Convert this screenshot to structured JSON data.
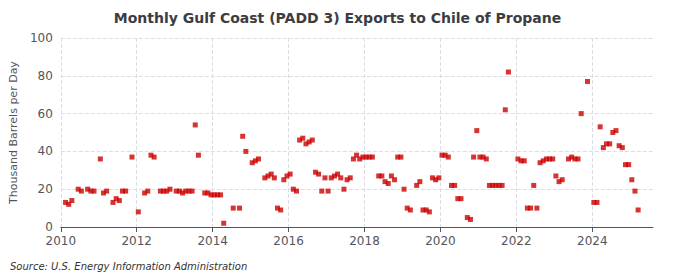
{
  "chart_data": {
    "type": "scatter",
    "title": "Monthly Gulf Coast (PADD 3) Exports to Chile of Propane",
    "ylabel": "Thousand Barrels per Day",
    "annotation": "Source: U.S. Energy Information Administration",
    "color": "#cc0000",
    "marker": "square",
    "grid": true,
    "xlim": [
      2010.0,
      2025.6
    ],
    "xticks": [
      2010,
      2012,
      2014,
      2016,
      2018,
      2020,
      2022,
      2024
    ],
    "ylim": [
      0,
      100
    ],
    "yticks": [
      0,
      20,
      40,
      60,
      80,
      100
    ],
    "x": [
      2010.125,
      2010.208333,
      2010.291667,
      2010.458333,
      2010.541667,
      2010.708333,
      2010.791667,
      2010.875,
      2011.041667,
      2011.125,
      2011.208333,
      2011.375,
      2011.458333,
      2011.541667,
      2011.625,
      2011.708333,
      2011.875,
      2012.041667,
      2012.208333,
      2012.291667,
      2012.375,
      2012.458333,
      2012.625,
      2012.708333,
      2012.791667,
      2012.875,
      2013.041667,
      2013.125,
      2013.208333,
      2013.291667,
      2013.375,
      2013.458333,
      2013.541667,
      2013.625,
      2013.791667,
      2013.875,
      2013.958333,
      2014.041667,
      2014.125,
      2014.208333,
      2014.291667,
      2014.541667,
      2014.708333,
      2014.791667,
      2014.875,
      2015.041667,
      2015.125,
      2015.208333,
      2015.375,
      2015.458333,
      2015.541667,
      2015.625,
      2015.708333,
      2015.791667,
      2015.875,
      2015.958333,
      2016.041667,
      2016.125,
      2016.208333,
      2016.291667,
      2016.375,
      2016.458333,
      2016.541667,
      2016.625,
      2016.708333,
      2016.791667,
      2016.875,
      2016.958333,
      2017.041667,
      2017.125,
      2017.208333,
      2017.291667,
      2017.375,
      2017.458333,
      2017.541667,
      2017.625,
      2017.708333,
      2017.791667,
      2017.875,
      2017.958333,
      2018.041667,
      2018.125,
      2018.208333,
      2018.375,
      2018.458333,
      2018.541667,
      2018.625,
      2018.708333,
      2018.791667,
      2018.875,
      2018.958333,
      2019.041667,
      2019.125,
      2019.208333,
      2019.375,
      2019.458333,
      2019.541667,
      2019.625,
      2019.708333,
      2019.791667,
      2019.875,
      2019.958333,
      2020.041667,
      2020.125,
      2020.208333,
      2020.291667,
      2020.375,
      2020.458333,
      2020.541667,
      2020.708333,
      2020.791667,
      2020.875,
      2020.958333,
      2021.041667,
      2021.125,
      2021.208333,
      2021.291667,
      2021.375,
      2021.458333,
      2021.541667,
      2021.625,
      2021.708333,
      2021.791667,
      2022.041667,
      2022.125,
      2022.208333,
      2022.291667,
      2022.375,
      2022.458333,
      2022.541667,
      2022.625,
      2022.708333,
      2022.791667,
      2022.875,
      2022.958333,
      2023.041667,
      2023.125,
      2023.208333,
      2023.375,
      2023.458333,
      2023.541667,
      2023.625,
      2023.708333,
      2023.875,
      2024.041667,
      2024.125,
      2024.208333,
      2024.291667,
      2024.375,
      2024.458333,
      2024.541667,
      2024.625,
      2024.708333,
      2024.791667,
      2024.875,
      2024.958333,
      2025.041667,
      2025.125,
      2025.208333
    ],
    "values": [
      13,
      12,
      14,
      20,
      19,
      20,
      19,
      19,
      36,
      18,
      19,
      13,
      15,
      14,
      19,
      19,
      37,
      8,
      18,
      19,
      38,
      37,
      19,
      19,
      19,
      20,
      19,
      19,
      18,
      19,
      19,
      19,
      54,
      38,
      18,
      18,
      17,
      17,
      17,
      17,
      2,
      10,
      10,
      48,
      40,
      34,
      35,
      36,
      26,
      27,
      28,
      26,
      10,
      9,
      25,
      27,
      28,
      20,
      19,
      46,
      47,
      44,
      45,
      46,
      29,
      28,
      19,
      26,
      19,
      26,
      27,
      28,
      26,
      20,
      25,
      26,
      36,
      38,
      36,
      37,
      37,
      37,
      37,
      27,
      27,
      24,
      23,
      27,
      25,
      37,
      37,
      20,
      10,
      9,
      22,
      24,
      9,
      9,
      8,
      26,
      25,
      26,
      38,
      38,
      37,
      22,
      22,
      15,
      15,
      5,
      4,
      37,
      51,
      37,
      37,
      36,
      22,
      22,
      22,
      22,
      22,
      62,
      82,
      36,
      35,
      35,
      10,
      10,
      22,
      10,
      34,
      35,
      36,
      36,
      36,
      27,
      24,
      25,
      36,
      37,
      36,
      36,
      60,
      77,
      13,
      13,
      53,
      42,
      44,
      44,
      50,
      51,
      43,
      42,
      33,
      33,
      25,
      19,
      9
    ]
  }
}
